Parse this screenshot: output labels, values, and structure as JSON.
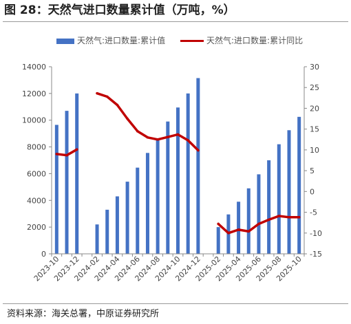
{
  "title": "图 28：天然气进口数量累计值（万吨，%）",
  "source": "资料来源：海关总署，中原证券研究所",
  "legend": {
    "bar_label": "天然气:进口数量:累计值",
    "line_label": "天然气:进口数量:累计同比"
  },
  "colors": {
    "bar": "#4472C4",
    "line": "#C00000"
  },
  "chart_data": {
    "type": "bar+line",
    "categories": [
      "2023-10",
      "2023-11",
      "2023-12",
      "2024-01",
      "2024-02",
      "2024-03",
      "2024-04",
      "2024-05",
      "2024-06",
      "2024-07",
      "2024-08",
      "2024-09",
      "2024-10",
      "2024-11",
      "2024-12",
      "2025-01",
      "2025-02",
      "2025-03",
      "2025-04",
      "2025-05",
      "2025-06",
      "2025-07",
      "2025-08",
      "2025-09",
      "2025-10"
    ],
    "x_tick_labels": [
      "2023-10",
      "2023-12",
      "2024-02",
      "2024-04",
      "2024-06",
      "2024-08",
      "2024-10",
      "2024-12",
      "2025-02",
      "2025-04",
      "2025-06",
      "2025-08",
      "2025-10"
    ],
    "series": [
      {
        "name": "天然气:进口数量:累计值",
        "type": "bar",
        "axis": "left",
        "values": [
          9650,
          10700,
          12000,
          null,
          2200,
          3300,
          4300,
          5400,
          6450,
          7550,
          8650,
          9900,
          10950,
          12000,
          13150,
          null,
          2000,
          2950,
          3900,
          4900,
          5950,
          7000,
          8200,
          9250,
          10250
        ]
      },
      {
        "name": "天然气:进口数量:累计同比",
        "type": "line",
        "axis": "right",
        "values": [
          9,
          8.7,
          10.1,
          null,
          23.6,
          22.8,
          20.8,
          17.5,
          14.5,
          13,
          12.5,
          13.1,
          13.7,
          12.3,
          9.9,
          null,
          -7.8,
          -10,
          -9.2,
          -9.6,
          -7.8,
          -6.8,
          -5.9,
          -6.2,
          -6.2
        ]
      }
    ],
    "y_left": {
      "min": 0,
      "max": 14000,
      "ticks": [
        0,
        2000,
        4000,
        6000,
        8000,
        10000,
        12000,
        14000
      ]
    },
    "y_right": {
      "min": -15,
      "max": 30,
      "ticks": [
        -15,
        -10,
        -5,
        0,
        5,
        10,
        15,
        20,
        25,
        30
      ]
    },
    "grid": false,
    "legend_position": "top"
  }
}
